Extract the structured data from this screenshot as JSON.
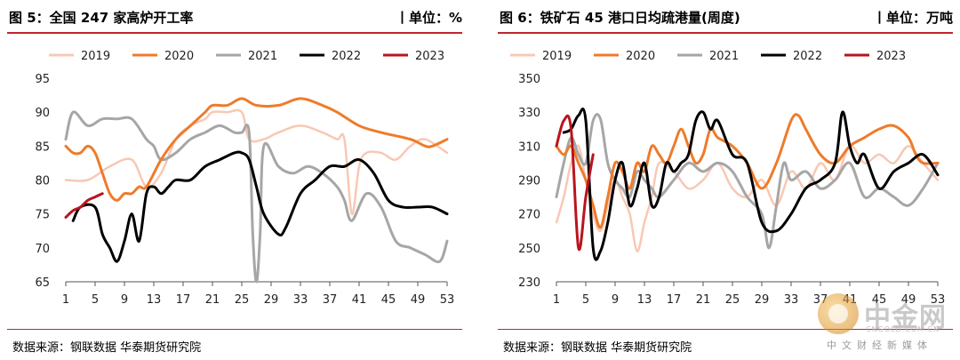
{
  "colors": {
    "2019": "#f8c8b4",
    "2020": "#ee7b2b",
    "2021": "#a6a6a6",
    "2022": "#000000",
    "2023": "#b8151e",
    "accent": "#c0262c"
  },
  "watermark": {
    "name": "中金网",
    "url": "CNGOLD.COM.CN",
    "tagline": "中文财经新媒体"
  },
  "chart_data": [
    {
      "type": "line",
      "fig_title": "图 5：全国 247 家高炉开工率",
      "unit": "丨单位：%",
      "source": "数据来源：钢联数据  华泰期货研究院",
      "xlabel": "",
      "ylabel": "",
      "ylim": [
        65,
        95
      ],
      "yticks": [
        "95",
        "90",
        "85",
        "80",
        "75",
        "70",
        "65"
      ],
      "xticks": [
        "1",
        "5",
        "9",
        "13",
        "17",
        "21",
        "25",
        "29",
        "33",
        "37",
        "41",
        "45",
        "49",
        "53"
      ],
      "legend": [
        "2019",
        "2020",
        "2021",
        "2022",
        "2023"
      ],
      "legend_position": "top",
      "grid": false,
      "series": [
        {
          "name": "2019",
          "x": [
            1,
            4,
            7,
            10,
            12,
            14,
            16,
            18,
            20,
            21,
            23,
            25,
            26,
            28,
            30,
            33,
            36,
            38,
            39,
            40,
            41,
            42,
            44,
            46,
            48,
            50,
            53
          ],
          "y": [
            80,
            80,
            82,
            83,
            79,
            81,
            86,
            88,
            89,
            90,
            90,
            90,
            86,
            86,
            87,
            88,
            87,
            86,
            86,
            75,
            82,
            84,
            84,
            83,
            85,
            86,
            84
          ]
        },
        {
          "name": "2020",
          "x": [
            1,
            2,
            3,
            4,
            5,
            6,
            7,
            8,
            9,
            10,
            11,
            12,
            14,
            16,
            18,
            20,
            21,
            23,
            25,
            27,
            30,
            33,
            36,
            38,
            41,
            44,
            48,
            50,
            51,
            53
          ],
          "y": [
            85,
            84,
            84,
            85,
            84,
            81,
            78,
            77,
            78,
            78,
            79,
            79,
            83,
            86,
            88,
            90,
            91,
            91,
            92,
            91,
            91,
            92,
            91,
            90,
            88,
            87,
            86,
            85,
            85,
            86
          ]
        },
        {
          "name": "2021",
          "x": [
            1,
            2,
            4,
            6,
            8,
            10,
            12,
            13,
            14,
            16,
            18,
            20,
            22,
            24,
            25,
            26,
            26.5,
            27,
            27.5,
            28,
            30,
            32,
            34,
            36,
            38,
            39,
            40,
            42,
            44,
            46,
            48,
            50,
            52,
            53
          ],
          "y": [
            86,
            90,
            88,
            89,
            89,
            89,
            86,
            85,
            83,
            84,
            86,
            87,
            88,
            87,
            87,
            87,
            72,
            65,
            72,
            85,
            82,
            81,
            82,
            81,
            79,
            77,
            74,
            78,
            76,
            71,
            70,
            69,
            68,
            71
          ]
        },
        {
          "name": "2022",
          "x": [
            2,
            3,
            5,
            6,
            7,
            8,
            9,
            10,
            11,
            12,
            13,
            14,
            15,
            16,
            18,
            20,
            22,
            24,
            25,
            26,
            27,
            28,
            30,
            31,
            33,
            35,
            37,
            39,
            41,
            43,
            45,
            47,
            49,
            51,
            53
          ],
          "y": [
            74,
            76,
            76,
            72,
            70,
            68,
            71,
            75,
            71,
            78,
            79,
            78,
            79,
            80,
            80,
            82,
            83,
            84,
            84,
            83,
            79,
            75,
            72,
            73,
            78,
            80,
            82,
            82,
            83,
            81,
            77,
            76,
            76,
            76,
            75
          ]
        },
        {
          "name": "2023",
          "x": [
            1,
            2,
            3,
            4,
            5,
            6
          ],
          "y": [
            74.5,
            75.5,
            76,
            77,
            77.5,
            78
          ]
        }
      ]
    },
    {
      "type": "line",
      "fig_title": "图 6：铁矿石 45 港口日均疏港量(周度)",
      "unit": "丨单位：万吨",
      "source": "数据来源：钢联数据  华泰期货研究院",
      "xlabel": "",
      "ylabel": "",
      "ylim": [
        230,
        350
      ],
      "yticks": [
        "350",
        "330",
        "310",
        "290",
        "270",
        "250",
        "230"
      ],
      "xticks": [
        "1",
        "5",
        "9",
        "13",
        "17",
        "21",
        "25",
        "29",
        "33",
        "37",
        "41",
        "45",
        "49",
        "53"
      ],
      "legend": [
        "2019",
        "2020",
        "2021",
        "2022",
        "2023"
      ],
      "legend_position": "top",
      "grid": false,
      "series": [
        {
          "name": "2019",
          "x": [
            1,
            2,
            3,
            4,
            5,
            6,
            7,
            8,
            9,
            10,
            11,
            12,
            13,
            14,
            15,
            17,
            19,
            21,
            23,
            25,
            27,
            29,
            31,
            33,
            35,
            37,
            39,
            41,
            43,
            45,
            47,
            49,
            51,
            53
          ],
          "y": [
            265,
            280,
            300,
            310,
            290,
            270,
            260,
            275,
            290,
            280,
            270,
            248,
            265,
            280,
            300,
            295,
            285,
            290,
            300,
            285,
            280,
            290,
            275,
            295,
            285,
            300,
            290,
            310,
            300,
            305,
            300,
            310,
            300,
            290
          ]
        },
        {
          "name": "2020",
          "x": [
            1,
            2,
            3,
            4,
            5,
            6,
            7,
            8,
            9,
            10,
            11,
            12,
            13,
            14,
            15,
            16,
            17,
            18,
            19,
            20,
            21,
            22,
            23,
            25,
            27,
            29,
            31,
            33,
            34,
            35,
            37,
            39,
            41,
            43,
            45,
            47,
            49,
            50,
            51,
            53
          ],
          "y": [
            310,
            305,
            310,
            300,
            290,
            275,
            262,
            280,
            300,
            295,
            285,
            300,
            295,
            310,
            305,
            300,
            310,
            320,
            310,
            300,
            305,
            320,
            315,
            310,
            300,
            285,
            300,
            325,
            328,
            320,
            305,
            300,
            310,
            315,
            320,
            322,
            315,
            305,
            300,
            300
          ]
        },
        {
          "name": "2021",
          "x": [
            1,
            2,
            3,
            4,
            5,
            6,
            7,
            8,
            9,
            10,
            11,
            12,
            13,
            14,
            15,
            17,
            19,
            21,
            23,
            25,
            27,
            29,
            30,
            31,
            32,
            33,
            35,
            37,
            39,
            41,
            43,
            45,
            47,
            49,
            51,
            53
          ],
          "y": [
            280,
            300,
            315,
            305,
            300,
            325,
            326,
            300,
            290,
            285,
            280,
            295,
            290,
            285,
            280,
            290,
            300,
            295,
            300,
            295,
            280,
            270,
            250,
            275,
            300,
            290,
            295,
            285,
            290,
            300,
            280,
            285,
            280,
            275,
            285,
            300
          ]
        },
        {
          "name": "2022",
          "x": [
            2,
            3,
            4,
            5,
            6,
            7,
            8,
            9,
            10,
            11,
            12,
            13,
            14,
            15,
            16,
            17,
            18,
            19,
            20,
            21,
            22,
            23,
            25,
            27,
            29,
            31,
            33,
            35,
            37,
            39,
            40,
            41,
            42,
            43,
            45,
            47,
            49,
            51,
            53
          ],
          "y": [
            318,
            320,
            328,
            325,
            250,
            248,
            265,
            290,
            300,
            275,
            285,
            300,
            275,
            280,
            300,
            295,
            300,
            305,
            325,
            330,
            320,
            325,
            305,
            300,
            265,
            260,
            270,
            285,
            290,
            300,
            330,
            310,
            300,
            305,
            285,
            295,
            300,
            305,
            293
          ]
        },
        {
          "name": "2023",
          "x": [
            1,
            2,
            3,
            4,
            5,
            6
          ],
          "y": [
            310,
            325,
            320,
            250,
            280,
            305
          ]
        }
      ]
    }
  ]
}
